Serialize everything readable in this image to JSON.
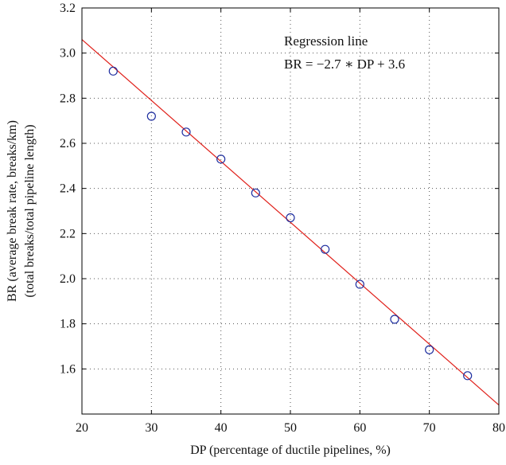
{
  "chart_data": {
    "type": "scatter",
    "xlabel": "DP (percentage of ductile pipelines, %)",
    "ylabel_line1": "BR (average break rate, breaks/km)",
    "ylabel_line2": "(total breaks/total pipeline length)",
    "xlim": [
      20,
      80
    ],
    "ylim": [
      1.4,
      3.2
    ],
    "xticks": [
      "20",
      "30",
      "40",
      "50",
      "60",
      "70",
      "80"
    ],
    "yticks": [
      "1.6",
      "1.8",
      "2.0",
      "2.2",
      "2.4",
      "2.6",
      "2.8",
      "3.0",
      "3.2"
    ],
    "grid": true,
    "series": [
      {
        "marker": "circle",
        "color": "#1f2fa0",
        "x": [
          24.5,
          30.0,
          35.0,
          40.0,
          45.0,
          50.0,
          55.0,
          60.0,
          65.0,
          70.0,
          75.5
        ],
        "y": [
          2.92,
          2.72,
          2.65,
          2.53,
          2.38,
          2.27,
          2.13,
          1.975,
          1.82,
          1.685,
          1.57
        ]
      }
    ],
    "regression": {
      "slope_per_percent": -0.027,
      "intercept": 3.6,
      "color": "#e0201a",
      "x_range": [
        20,
        80
      ]
    },
    "annotation_title": "Regression line",
    "annotation_equation": "BR = −2.7 ∗ DP + 3.6"
  }
}
